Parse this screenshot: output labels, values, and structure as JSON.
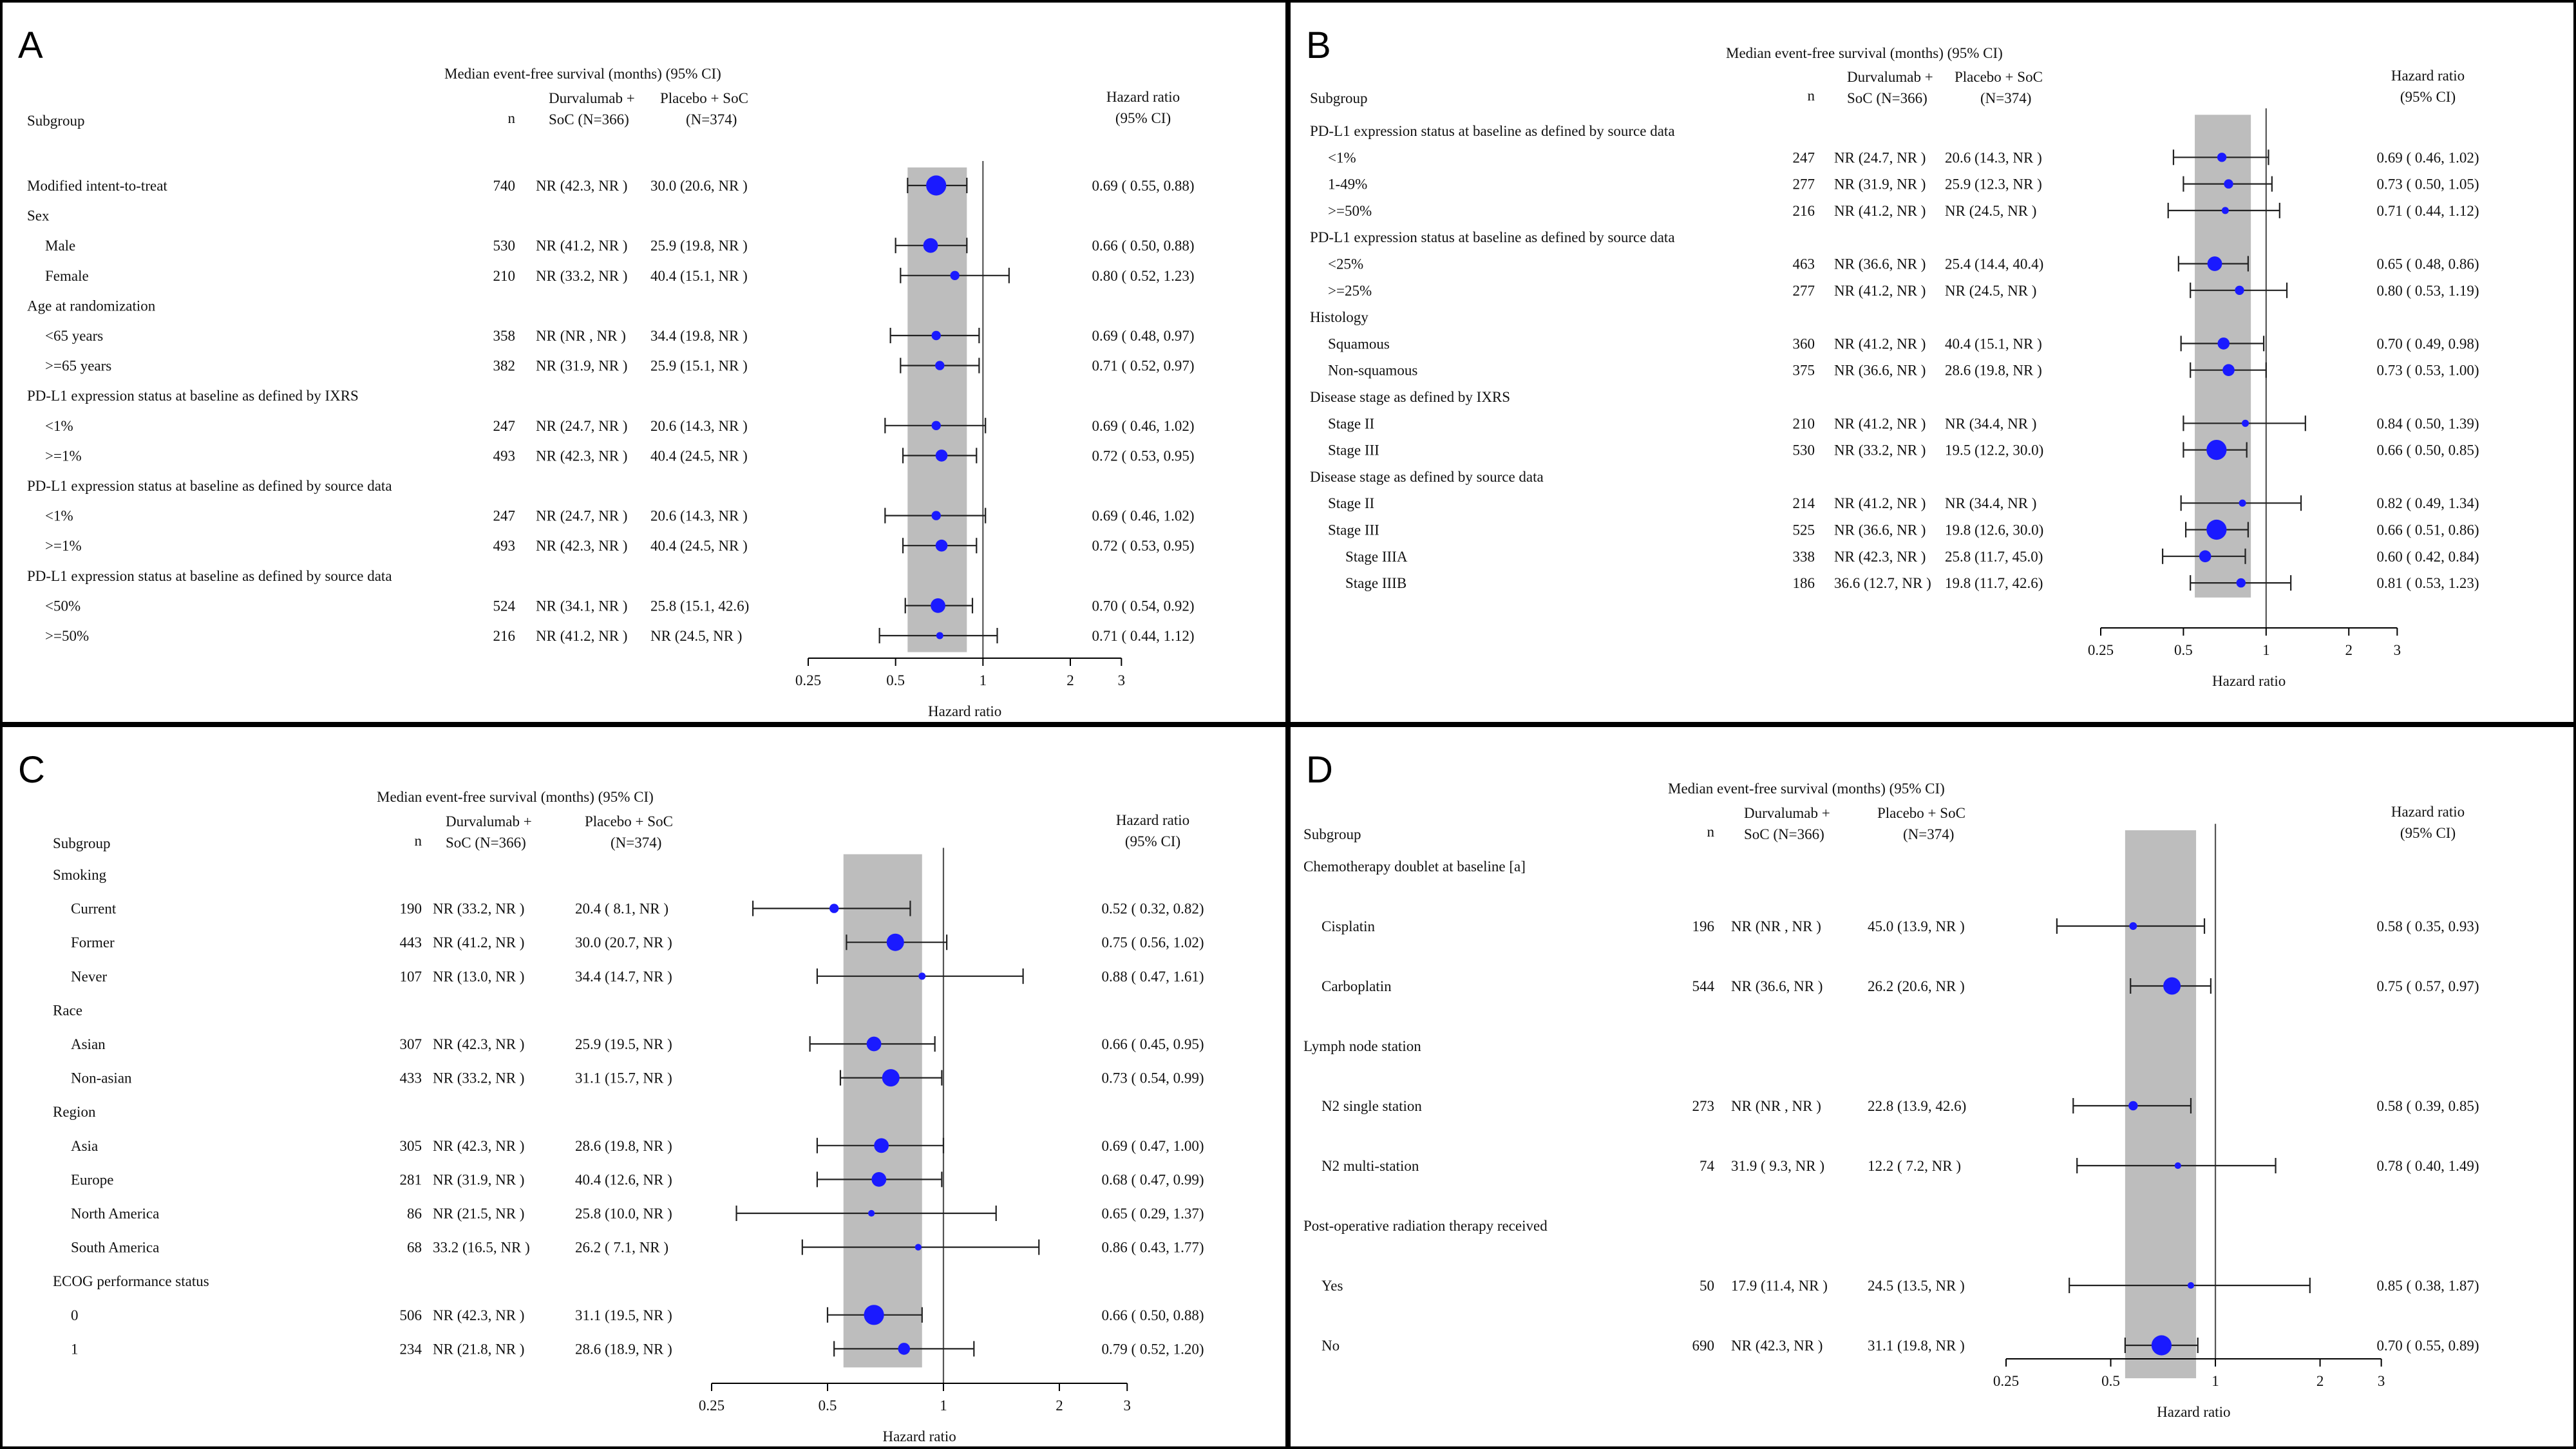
{
  "chart_data": [
    {
      "type": "forest",
      "panel_label": "A",
      "header": "Median event-free survival (months) (95% CI)",
      "subgroup_label": "Subgroup",
      "n_label": "n",
      "arm1_label": [
        "Durvalumab +",
        "SoC (N=366)"
      ],
      "arm2_label": [
        "Placebo +  SoC",
        "(N=374)"
      ],
      "hr_label": [
        "Hazard ratio",
        "(95% CI)"
      ],
      "xlabel": "Hazard ratio",
      "xticks": [
        0.25,
        0.5,
        1,
        2,
        3
      ],
      "xtick_labels": [
        "0.25",
        "0.5",
        "1",
        "2",
        "3"
      ],
      "xlim": [
        0.25,
        3.3
      ],
      "log_x": true,
      "overall_band": [
        0.55,
        0.88
      ],
      "rows": [
        {
          "label": "Modified intent-to-treat",
          "level": 0,
          "n": "740",
          "arm1": "NR  (42.3, NR )",
          "arm2": "30.0 (20.6, NR )",
          "hr_text": "0.69 ( 0.55, 0.88)",
          "hr": 0.69,
          "lo": 0.55,
          "hi": 0.88,
          "size": 3
        },
        {
          "label": "Sex",
          "level": 0,
          "header": true
        },
        {
          "label": "Male",
          "level": 1,
          "n": "530",
          "arm1": "NR  (41.2, NR )",
          "arm2": "25.9 (19.8, NR )",
          "hr_text": "0.66 ( 0.50, 0.88)",
          "hr": 0.66,
          "lo": 0.5,
          "hi": 0.88,
          "size": 2
        },
        {
          "label": "Female",
          "level": 1,
          "n": "210",
          "arm1": "NR  (33.2, NR )",
          "arm2": "40.4 (15.1, NR )",
          "hr_text": "0.80 ( 0.52, 1.23)",
          "hr": 0.8,
          "lo": 0.52,
          "hi": 1.23,
          "size": 1
        },
        {
          "label": "Age at randomization",
          "level": 0,
          "header": true
        },
        {
          "label": "<65 years",
          "level": 1,
          "n": "358",
          "arm1": "NR  (NR  , NR )",
          "arm2": "34.4 (19.8, NR )",
          "hr_text": "0.69 ( 0.48, 0.97)",
          "hr": 0.69,
          "lo": 0.48,
          "hi": 0.97,
          "size": 1
        },
        {
          "label": ">=65 years",
          "level": 1,
          "n": "382",
          "arm1": "NR  (31.9, NR )",
          "arm2": "25.9 (15.1, NR )",
          "hr_text": "0.71 ( 0.52, 0.97)",
          "hr": 0.71,
          "lo": 0.52,
          "hi": 0.97,
          "size": 1
        },
        {
          "label": "PD-L1 expression status at baseline as defined by IXRS",
          "level": 0,
          "header": true
        },
        {
          "label": "<1%",
          "level": 1,
          "n": "247",
          "arm1": "NR  (24.7, NR )",
          "arm2": "20.6 (14.3, NR )",
          "hr_text": "0.69 ( 0.46, 1.02)",
          "hr": 0.69,
          "lo": 0.46,
          "hi": 1.02,
          "size": 1
        },
        {
          "label": ">=1%",
          "level": 1,
          "n": "493",
          "arm1": "NR  (42.3, NR )",
          "arm2": "40.4 (24.5, NR )",
          "hr_text": "0.72 ( 0.53, 0.95)",
          "hr": 0.72,
          "lo": 0.53,
          "hi": 0.95,
          "size": 1.5
        },
        {
          "label": "PD-L1 expression status at baseline as defined by source data",
          "level": 0,
          "header": true
        },
        {
          "label": "<1%",
          "level": 1,
          "n": "247",
          "arm1": "NR  (24.7, NR )",
          "arm2": "20.6 (14.3, NR )",
          "hr_text": "0.69 ( 0.46, 1.02)",
          "hr": 0.69,
          "lo": 0.46,
          "hi": 1.02,
          "size": 1
        },
        {
          "label": ">=1%",
          "level": 1,
          "n": "493",
          "arm1": "NR  (42.3, NR )",
          "arm2": "40.4 (24.5, NR )",
          "hr_text": "0.72 ( 0.53, 0.95)",
          "hr": 0.72,
          "lo": 0.53,
          "hi": 0.95,
          "size": 1.5
        },
        {
          "label": "PD-L1 expression status at baseline as defined by source data",
          "level": 0,
          "header": true
        },
        {
          "label": "<50%",
          "level": 1,
          "n": "524",
          "arm1": "NR  (34.1, NR )",
          "arm2": "25.8 (15.1, 42.6)",
          "hr_text": "0.70 ( 0.54, 0.92)",
          "hr": 0.7,
          "lo": 0.54,
          "hi": 0.92,
          "size": 2
        },
        {
          "label": ">=50%",
          "level": 1,
          "n": "216",
          "arm1": "NR  (41.2, NR )",
          "arm2": "NR  (24.5, NR )",
          "hr_text": "0.71 ( 0.44, 1.12)",
          "hr": 0.71,
          "lo": 0.44,
          "hi": 1.12,
          "size": 0.6
        }
      ]
    },
    {
      "type": "forest",
      "panel_label": "B",
      "header": "Median event-free survival (months) (95% CI)",
      "subgroup_label": "Subgroup",
      "n_label": "n",
      "arm1_label": [
        "Durvalumab +",
        "SoC (N=366)"
      ],
      "arm2_label": [
        "Placebo + SoC",
        "(N=374)"
      ],
      "hr_label": [
        "Hazard ratio",
        "(95% CI)"
      ],
      "xlabel": "Hazard ratio",
      "xticks": [
        0.25,
        0.5,
        1,
        2,
        3
      ],
      "xtick_labels": [
        "0.25",
        "0.5",
        "1",
        "2",
        "3"
      ],
      "xlim": [
        0.25,
        3.3
      ],
      "log_x": true,
      "overall_band": [
        0.55,
        0.88
      ],
      "rows": [
        {
          "label": "PD-L1 expression status at baseline as defined by source data",
          "level": 0,
          "header": true
        },
        {
          "label": "<1%",
          "level": 1,
          "n": "247",
          "arm1": "NR  (24.7, NR )",
          "arm2": "20.6 (14.3, NR )",
          "hr_text": "0.69 ( 0.46, 1.02)",
          "hr": 0.69,
          "lo": 0.46,
          "hi": 1.02,
          "size": 1
        },
        {
          "label": "1-49%",
          "level": 1,
          "n": "277",
          "arm1": "NR  (31.9, NR )",
          "arm2": "25.9 (12.3, NR )",
          "hr_text": "0.73 ( 0.50, 1.05)",
          "hr": 0.73,
          "lo": 0.5,
          "hi": 1.05,
          "size": 1
        },
        {
          "label": ">=50%",
          "level": 1,
          "n": "216",
          "arm1": "NR  (41.2, NR )",
          "arm2": "NR  (24.5, NR )",
          "hr_text": "0.71 ( 0.44, 1.12)",
          "hr": 0.71,
          "lo": 0.44,
          "hi": 1.12,
          "size": 0.6
        },
        {
          "label": "PD-L1 expression status at baseline as defined by source data",
          "level": 0,
          "header": true
        },
        {
          "label": "<25%",
          "level": 1,
          "n": "463",
          "arm1": "NR  (36.6, NR )",
          "arm2": "25.4 (14.4, 40.4)",
          "hr_text": "0.65 ( 0.48, 0.86)",
          "hr": 0.65,
          "lo": 0.48,
          "hi": 0.86,
          "size": 2
        },
        {
          "label": ">=25%",
          "level": 1,
          "n": "277",
          "arm1": "NR  (41.2, NR )",
          "arm2": "NR  (24.5, NR )",
          "hr_text": "0.80 ( 0.53, 1.19)",
          "hr": 0.8,
          "lo": 0.53,
          "hi": 1.19,
          "size": 1
        },
        {
          "label": "Histology",
          "level": 0,
          "header": true
        },
        {
          "label": "Squamous",
          "level": 1,
          "n": "360",
          "arm1": "NR  (41.2, NR )",
          "arm2": "40.4 (15.1, NR )",
          "hr_text": "0.70 ( 0.49, 0.98)",
          "hr": 0.7,
          "lo": 0.49,
          "hi": 0.98,
          "size": 1.5
        },
        {
          "label": "Non-squamous",
          "level": 1,
          "n": "375",
          "arm1": "NR  (36.6, NR )",
          "arm2": "28.6 (19.8, NR )",
          "hr_text": "0.73 ( 0.53, 1.00)",
          "hr": 0.73,
          "lo": 0.53,
          "hi": 1.0,
          "size": 1.5
        },
        {
          "label": "Disease stage as defined by IXRS",
          "level": 0,
          "header": true
        },
        {
          "label": "Stage II",
          "level": 1,
          "n": "210",
          "arm1": "NR  (41.2, NR )",
          "arm2": "NR  (34.4, NR )",
          "hr_text": "0.84 ( 0.50, 1.39)",
          "hr": 0.84,
          "lo": 0.5,
          "hi": 1.39,
          "size": 0.6
        },
        {
          "label": "Stage III",
          "level": 1,
          "n": "530",
          "arm1": "NR  (33.2, NR )",
          "arm2": "19.5 (12.2, 30.0)",
          "hr_text": "0.66 ( 0.50, 0.85)",
          "hr": 0.66,
          "lo": 0.5,
          "hi": 0.85,
          "size": 3
        },
        {
          "label": "Disease stage as defined by source data",
          "level": 0,
          "header": true
        },
        {
          "label": "Stage II",
          "level": 1,
          "n": "214",
          "arm1": "NR  (41.2, NR )",
          "arm2": "NR  (34.4, NR )",
          "hr_text": "0.82 ( 0.49, 1.34)",
          "hr": 0.82,
          "lo": 0.49,
          "hi": 1.34,
          "size": 0.6
        },
        {
          "label": "Stage III",
          "level": 1,
          "n": "525",
          "arm1": "NR  (36.6, NR )",
          "arm2": "19.8 (12.6, 30.0)",
          "hr_text": "0.66 ( 0.51, 0.86)",
          "hr": 0.66,
          "lo": 0.51,
          "hi": 0.86,
          "size": 3
        },
        {
          "label": "Stage IIIA",
          "level": 2,
          "n": "338",
          "arm1": "NR  (42.3, NR )",
          "arm2": "25.8 (11.7, 45.0)",
          "hr_text": "0.60 ( 0.42, 0.84)",
          "hr": 0.6,
          "lo": 0.42,
          "hi": 0.84,
          "size": 1.5
        },
        {
          "label": "Stage IIIB",
          "level": 2,
          "n": "186",
          "arm1": "36.6 (12.7, NR )",
          "arm2": "19.8 (11.7, 42.6)",
          "hr_text": "0.81 ( 0.53, 1.23)",
          "hr": 0.81,
          "lo": 0.53,
          "hi": 1.23,
          "size": 1
        }
      ]
    },
    {
      "type": "forest",
      "panel_label": "C",
      "header": "Median event-free survival (months) (95% CI)",
      "subgroup_label": "Subgroup",
      "n_label": "n",
      "arm1_label": [
        "Durvalumab +",
        "SoC (N=366)"
      ],
      "arm2_label": [
        "Placebo + SoC",
        "(N=374)"
      ],
      "hr_label": [
        "Hazard ratio",
        "(95% CI)"
      ],
      "xlabel": "Hazard ratio",
      "xticks": [
        0.25,
        0.5,
        1,
        2,
        3
      ],
      "xtick_labels": [
        "0.25",
        "0.5",
        "1",
        "2",
        "3"
      ],
      "xlim": [
        0.25,
        3.3
      ],
      "log_x": true,
      "overall_band": [
        0.55,
        0.88
      ],
      "rows": [
        {
          "label": "Smoking",
          "level": 0,
          "header": true
        },
        {
          "label": "Current",
          "level": 1,
          "n": "190",
          "arm1": "NR  (33.2, NR )",
          "arm2": "20.4 ( 8.1, NR )",
          "hr_text": "0.52 ( 0.32, 0.82)",
          "hr": 0.52,
          "lo": 0.32,
          "hi": 0.82,
          "size": 1
        },
        {
          "label": "Former",
          "level": 1,
          "n": "443",
          "arm1": "NR  (41.2, NR )",
          "arm2": "30.0 (20.7, NR )",
          "hr_text": "0.75 ( 0.56, 1.02)",
          "hr": 0.75,
          "lo": 0.56,
          "hi": 1.02,
          "size": 2.5
        },
        {
          "label": "Never",
          "level": 1,
          "n": "107",
          "arm1": "NR  (13.0, NR )",
          "arm2": "34.4 (14.7, NR )",
          "hr_text": "0.88 ( 0.47, 1.61)",
          "hr": 0.88,
          "lo": 0.47,
          "hi": 1.61,
          "size": 0.6
        },
        {
          "label": "Race",
          "level": 0,
          "header": true
        },
        {
          "label": "Asian",
          "level": 1,
          "n": "307",
          "arm1": "NR  (42.3, NR )",
          "arm2": "25.9 (19.5, NR )",
          "hr_text": "0.66 ( 0.45, 0.95)",
          "hr": 0.66,
          "lo": 0.45,
          "hi": 0.95,
          "size": 2
        },
        {
          "label": "Non-asian",
          "level": 1,
          "n": "433",
          "arm1": "NR  (33.2, NR )",
          "arm2": "31.1 (15.7, NR )",
          "hr_text": "0.73 ( 0.54, 0.99)",
          "hr": 0.73,
          "lo": 0.54,
          "hi": 0.99,
          "size": 2.5
        },
        {
          "label": "Region",
          "level": 0,
          "header": true
        },
        {
          "label": "Asia",
          "level": 1,
          "n": "305",
          "arm1": "NR  (42.3, NR )",
          "arm2": "28.6 (19.8, NR )",
          "hr_text": "0.69 ( 0.47, 1.00)",
          "hr": 0.69,
          "lo": 0.47,
          "hi": 1.0,
          "size": 2
        },
        {
          "label": "Europe",
          "level": 1,
          "n": "281",
          "arm1": "NR  (31.9, NR )",
          "arm2": "40.4 (12.6, NR )",
          "hr_text": "0.68 ( 0.47, 0.99)",
          "hr": 0.68,
          "lo": 0.47,
          "hi": 0.99,
          "size": 2
        },
        {
          "label": "North America",
          "level": 1,
          "n": "86",
          "arm1": "NR  (21.5, NR )",
          "arm2": "25.8 (10.0, NR )",
          "hr_text": "0.65 ( 0.29, 1.37)",
          "hr": 0.65,
          "lo": 0.29,
          "hi": 1.37,
          "size": 0.5
        },
        {
          "label": "South America",
          "level": 1,
          "n": "68",
          "arm1": "33.2 (16.5, NR )",
          "arm2": "26.2 ( 7.1, NR )",
          "hr_text": "0.86 ( 0.43, 1.77)",
          "hr": 0.86,
          "lo": 0.43,
          "hi": 1.77,
          "size": 0.5
        },
        {
          "label": "ECOG performance status",
          "level": 0,
          "header": true
        },
        {
          "label": "0",
          "level": 1,
          "n": "506",
          "arm1": "NR  (42.3, NR )",
          "arm2": "31.1 (19.5, NR )",
          "hr_text": "0.66 ( 0.50, 0.88)",
          "hr": 0.66,
          "lo": 0.5,
          "hi": 0.88,
          "size": 3
        },
        {
          "label": "1",
          "level": 1,
          "n": "234",
          "arm1": "NR  (21.8, NR )",
          "arm2": "28.6 (18.9, NR )",
          "hr_text": "0.79 ( 0.52, 1.20)",
          "hr": 0.79,
          "lo": 0.52,
          "hi": 1.2,
          "size": 1.5
        }
      ]
    },
    {
      "type": "forest",
      "panel_label": "D",
      "header": "Median event-free survival (months) (95% CI)",
      "subgroup_label": "Subgroup",
      "n_label": "n",
      "arm1_label": [
        "Durvalumab +",
        "SoC (N=366)"
      ],
      "arm2_label": [
        "Placebo +  SoC",
        "(N=374)"
      ],
      "hr_label": [
        "Hazard ratio",
        "(95% CI)"
      ],
      "xlabel": "Hazard ratio",
      "xticks": [
        0.25,
        0.5,
        1,
        2,
        3
      ],
      "xtick_labels": [
        "0.25",
        "0.5",
        "1",
        "2",
        "3"
      ],
      "xlim": [
        0.25,
        3.3
      ],
      "log_x": true,
      "overall_band": [
        0.55,
        0.88
      ],
      "rows": [
        {
          "label": "Chemotherapy doublet at baseline [a]",
          "level": 0,
          "header": true
        },
        {
          "label": "Cisplatin",
          "level": 1,
          "n": "196",
          "arm1": "NR  (NR  , NR )",
          "arm2": "45.0 (13.9, NR )",
          "hr_text": "0.58 ( 0.35, 0.93)",
          "hr": 0.58,
          "lo": 0.35,
          "hi": 0.93,
          "size": 0.7
        },
        {
          "label": "Carboplatin",
          "level": 1,
          "n": "544",
          "arm1": "NR  (36.6, NR )",
          "arm2": "26.2 (20.6, NR )",
          "hr_text": "0.75 ( 0.57, 0.97)",
          "hr": 0.75,
          "lo": 0.57,
          "hi": 0.97,
          "size": 2.5
        },
        {
          "label": "Lymph node station",
          "level": 0,
          "header": true
        },
        {
          "label": "N2 single station",
          "level": 1,
          "n": "273",
          "arm1": "NR  (NR  , NR )",
          "arm2": "22.8 (13.9, 42.6)",
          "hr_text": "0.58 ( 0.39, 0.85)",
          "hr": 0.58,
          "lo": 0.39,
          "hi": 0.85,
          "size": 1
        },
        {
          "label": "N2 multi-station",
          "level": 1,
          "n": "74",
          "arm1": "31.9 ( 9.3, NR )",
          "arm2": "12.2 ( 7.2, NR )",
          "hr_text": "0.78 ( 0.40, 1.49)",
          "hr": 0.78,
          "lo": 0.4,
          "hi": 1.49,
          "size": 0.5
        },
        {
          "label": "Post-operative radiation therapy received",
          "level": 0,
          "header": true
        },
        {
          "label": "Yes",
          "level": 1,
          "n": "50",
          "arm1": "17.9 (11.4, NR )",
          "arm2": "24.5 (13.5, NR )",
          "hr_text": "0.85 ( 0.38, 1.87)",
          "hr": 0.85,
          "lo": 0.38,
          "hi": 1.87,
          "size": 0.5
        },
        {
          "label": "No",
          "level": 1,
          "n": "690",
          "arm1": "NR  (42.3, NR )",
          "arm2": "31.1 (19.8, NR )",
          "hr_text": "0.70 ( 0.55, 0.89)",
          "hr": 0.7,
          "lo": 0.55,
          "hi": 0.89,
          "size": 3
        }
      ]
    }
  ]
}
